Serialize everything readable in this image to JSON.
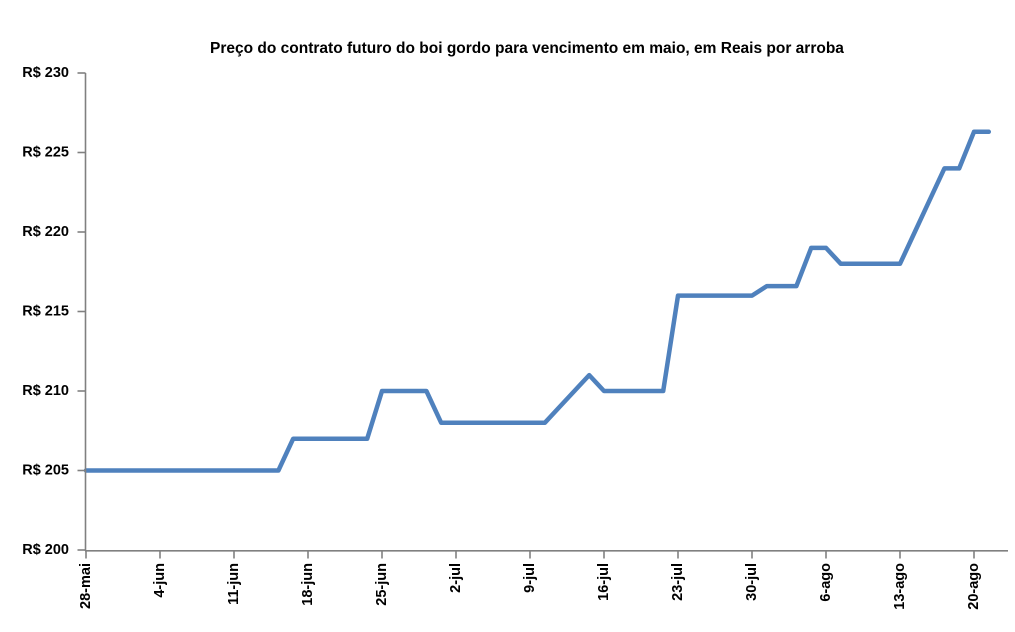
{
  "chart_data": {
    "type": "line",
    "title": "Preço do contrato futuro do boi gordo para vencimento em maio, em Reais por arroba",
    "currency_prefix": "R$",
    "unit": "Reais por arroba",
    "grid": false,
    "legend_position": "none",
    "line_color": "#4F81BD",
    "axis_color": "#808080",
    "background_color": "#FFFFFF",
    "ylim": [
      200,
      230
    ],
    "y_ticks": [
      200,
      205,
      210,
      215,
      220,
      225,
      230
    ],
    "y_tick_labels": [
      "R$ 200",
      "R$ 205",
      "R$ 210",
      "R$ 215",
      "R$ 220",
      "R$ 225",
      "R$ 230"
    ],
    "x_tick_labels": [
      "28-mai",
      "4-jun",
      "11-jun",
      "18-jun",
      "25-jun",
      "2-jul",
      "9-jul",
      "16-jul",
      "23-jul",
      "30-jul",
      "6-ago",
      "13-ago",
      "20-ago"
    ],
    "x_tick_day_index": [
      0,
      5,
      10,
      15,
      20,
      25,
      30,
      35,
      40,
      45,
      50,
      55,
      60
    ],
    "x": [
      "28-mai",
      "29-mai",
      "30-mai",
      "31-mai",
      "1-jun",
      "4-jun",
      "5-jun",
      "6-jun",
      "7-jun",
      "8-jun",
      "11-jun",
      "12-jun",
      "13-jun",
      "14-jun",
      "15-jun",
      "18-jun",
      "19-jun",
      "20-jun",
      "21-jun",
      "22-jun",
      "25-jun",
      "26-jun",
      "27-jun",
      "28-jun",
      "29-jun",
      "2-jul",
      "3-jul",
      "4-jul",
      "5-jul",
      "6-jul",
      "9-jul",
      "10-jul",
      "11-jul",
      "12-jul",
      "13-jul",
      "16-jul",
      "17-jul",
      "18-jul",
      "19-jul",
      "20-jul",
      "23-jul",
      "24-jul",
      "25-jul",
      "26-jul",
      "27-jul",
      "30-jul",
      "31-jul",
      "1-ago",
      "2-ago",
      "3-ago",
      "6-ago",
      "7-ago",
      "8-ago",
      "9-ago",
      "10-ago",
      "13-ago",
      "14-ago",
      "15-ago",
      "16-ago",
      "17-ago",
      "20-ago",
      "21-ago"
    ],
    "values": [
      205,
      205,
      205,
      205,
      205,
      205,
      205,
      205,
      205,
      205,
      205,
      205,
      205,
      205,
      207,
      207,
      207,
      207,
      207,
      207,
      210,
      210,
      210,
      210,
      208,
      208,
      208,
      208,
      208,
      208,
      208,
      208,
      209,
      210,
      211,
      210,
      210,
      210,
      210,
      210,
      216,
      216,
      216,
      216,
      216,
      216,
      216.6,
      216.6,
      216.6,
      219,
      219,
      218,
      218,
      218,
      218,
      218,
      220,
      222,
      224,
      224,
      226.3,
      226.3
    ]
  }
}
